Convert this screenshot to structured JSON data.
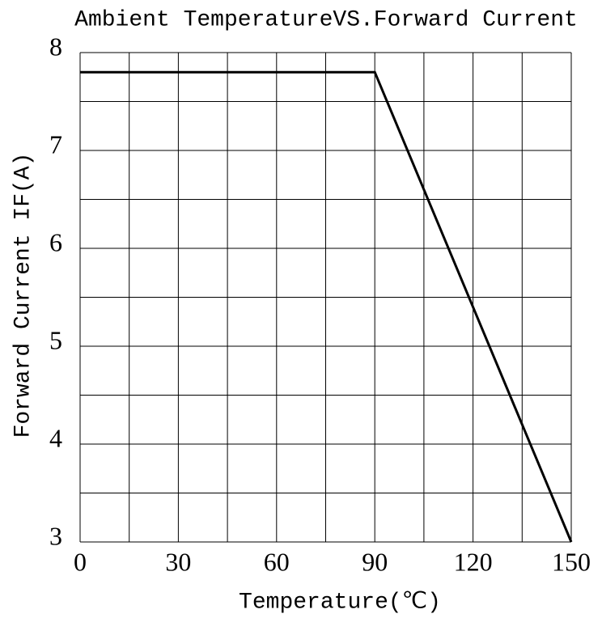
{
  "chart_data": {
    "type": "line",
    "title": "Ambient TemperatureVS.Forward Current",
    "x_label": "Temperature(℃)",
    "y_label": "Forward Current IF(A)",
    "series": [
      {
        "x": [
          0,
          90,
          150
        ],
        "values": [
          7.8,
          7.8,
          3
        ],
        "color": "#000000"
      }
    ],
    "xlim": [
      0,
      150
    ],
    "xticks": [
      0,
      30,
      60,
      90,
      120,
      150
    ],
    "ylim": [
      3,
      8
    ],
    "yticks": [
      3,
      4,
      5,
      6,
      7,
      8
    ],
    "xgrid": [
      0,
      15,
      30,
      45,
      60,
      75,
      90,
      105,
      120,
      135,
      150
    ],
    "ygrid": [
      3,
      3.5,
      4,
      4.5,
      5,
      5.5,
      6,
      6.5,
      7,
      7.5,
      8
    ],
    "grid": true
  }
}
